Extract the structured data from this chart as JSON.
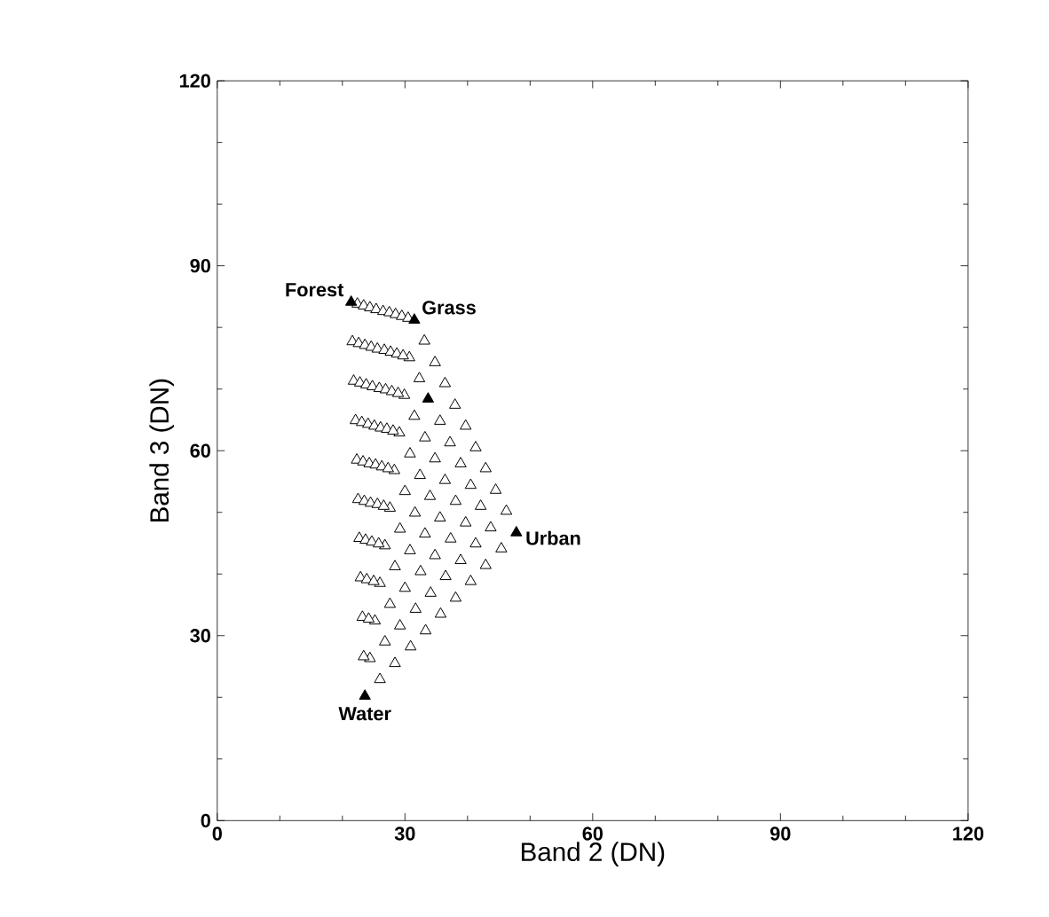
{
  "chart_data": {
    "type": "scatter",
    "xlabel": "Band 2 (DN)",
    "ylabel": "Band 3 (DN)",
    "xlim": [
      0,
      120
    ],
    "ylim": [
      0,
      120
    ],
    "xticks": [
      0,
      30,
      60,
      90,
      120
    ],
    "yticks": [
      0,
      30,
      60,
      90,
      120
    ],
    "grid": false,
    "legend": false,
    "marker": "triangle",
    "series": [
      {
        "color": "#000000",
        "x": [
          33.1,
          34.8,
          36.4,
          38.0,
          39.7,
          41.3,
          42.9,
          44.5,
          46.2,
          30.7,
          32.3,
          35.6,
          37.2,
          38.9,
          40.5,
          42.1,
          43.7,
          45.4,
          29.9,
          31.5,
          33.2,
          34.8,
          36.4,
          38.1,
          39.7,
          41.3,
          42.9,
          29.1,
          30.8,
          32.4,
          34.0,
          35.6,
          37.3,
          38.9,
          40.5,
          28.3,
          30.0,
          31.6,
          33.2,
          34.8,
          36.5,
          38.1,
          27.6,
          29.2,
          30.8,
          32.5,
          34.1,
          35.7,
          26.8,
          28.4,
          30.0,
          31.7,
          33.3,
          26.0,
          27.6,
          29.2,
          30.9,
          25.2,
          26.8,
          28.4,
          24.4,
          26.0,
          22.4,
          23.4,
          24.4,
          25.4,
          26.5,
          27.5,
          28.5,
          29.5,
          30.5,
          21.6,
          22.6,
          23.6,
          24.6,
          25.6,
          26.7,
          27.7,
          28.7,
          29.7,
          21.8,
          22.8,
          23.8,
          24.8,
          25.9,
          26.9,
          27.9,
          28.9,
          22.1,
          23.1,
          24.1,
          25.1,
          26.1,
          27.1,
          28.1,
          22.3,
          23.3,
          24.3,
          25.3,
          26.3,
          27.3,
          22.5,
          23.5,
          24.5,
          25.6,
          26.6,
          22.7,
          23.7,
          24.7,
          25.8,
          22.9,
          23.9,
          25.0,
          23.2,
          24.2,
          23.4
        ],
        "values": [
          77.8,
          74.3,
          70.9,
          67.4,
          64.0,
          60.5,
          57.1,
          53.6,
          50.2,
          75.1,
          71.7,
          64.8,
          61.3,
          57.9,
          54.4,
          51.0,
          47.5,
          44.1,
          69.0,
          65.6,
          62.1,
          58.7,
          55.2,
          51.8,
          48.3,
          44.9,
          41.4,
          62.9,
          59.5,
          56.0,
          52.6,
          49.1,
          45.7,
          42.2,
          38.8,
          56.8,
          53.4,
          49.9,
          46.5,
          43.0,
          39.6,
          36.1,
          50.7,
          47.3,
          43.8,
          40.4,
          36.9,
          33.5,
          44.6,
          41.2,
          37.7,
          34.3,
          30.8,
          38.5,
          35.1,
          31.6,
          28.2,
          32.4,
          29.0,
          25.5,
          26.3,
          22.9,
          83.8,
          83.5,
          83.2,
          82.9,
          82.6,
          82.4,
          82.1,
          81.8,
          81.5,
          77.7,
          77.4,
          77.1,
          76.8,
          76.5,
          76.3,
          76.0,
          75.7,
          75.4,
          71.3,
          71.0,
          70.7,
          70.4,
          70.1,
          69.9,
          69.6,
          69.3,
          64.9,
          64.6,
          64.3,
          64.0,
          63.7,
          63.5,
          63.2,
          58.5,
          58.2,
          57.9,
          57.7,
          57.4,
          57.1,
          52.1,
          51.8,
          51.5,
          51.3,
          51.0,
          45.8,
          45.5,
          45.2,
          44.9,
          39.4,
          39.1,
          38.8,
          33.0,
          32.7,
          26.6
        ]
      },
      {
        "color": "#000000",
        "x": [
          21.4,
          31.5,
          33.7,
          47.8,
          23.6
        ],
        "values": [
          84.1,
          81.2,
          68.4,
          46.7,
          20.2
        ]
      }
    ],
    "annotations": [
      {
        "text": "Forest",
        "x": 21.4,
        "y": 84.1
      },
      {
        "text": "Grass",
        "x": 31.5,
        "y": 81.2
      },
      {
        "text": "Urban",
        "x": 47.8,
        "y": 46.7
      },
      {
        "text": "Water",
        "x": 23.6,
        "y": 20.2
      }
    ]
  }
}
